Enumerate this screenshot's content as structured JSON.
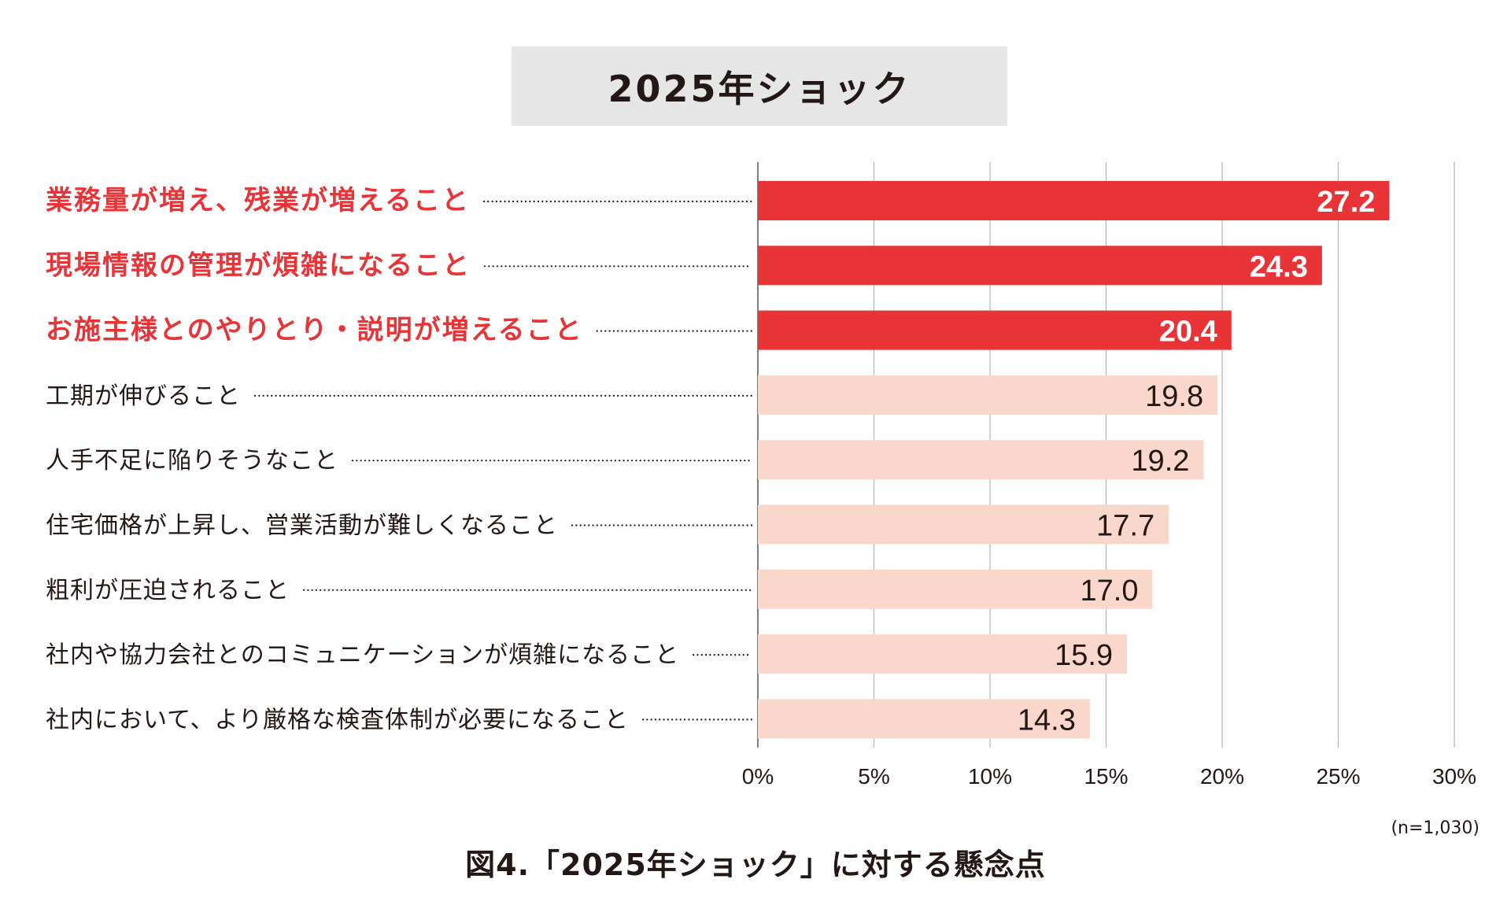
{
  "chart_data": {
    "type": "bar",
    "orientation": "horizontal",
    "title": "2025年ショック",
    "categories": [
      "業務量が増え、残業が増えること",
      "現場情報の管理が煩雑になること",
      "お施主様とのやりとり・説明が増えること",
      "工期が伸びること",
      "人手不足に陥りそうなこと",
      "住宅価格が上昇し、営業活動が難しくなること",
      "粗利が圧迫されること",
      "社内や協力会社とのコミュニケーションが煩雑になること",
      "社内において、より厳格な検査体制が必要になること"
    ],
    "values": [
      27.2,
      24.3,
      20.4,
      19.8,
      19.2,
      17.7,
      17.0,
      15.9,
      14.3
    ],
    "value_labels": [
      "27.2",
      "24.3",
      "20.4",
      "19.8",
      "19.2",
      "17.7",
      "17.0",
      "15.9",
      "14.3"
    ],
    "highlighted": [
      true,
      true,
      true,
      false,
      false,
      false,
      false,
      false,
      false
    ],
    "xlim": [
      0,
      30
    ],
    "xticks": [
      0,
      5,
      10,
      15,
      20,
      25,
      30
    ],
    "xtick_labels": [
      "0%",
      "5%",
      "10%",
      "15%",
      "20%",
      "25%",
      "30%"
    ],
    "grid": true,
    "note": "(n=1,030)",
    "caption": "図4.「2025年ショック」に対する懸念点"
  },
  "colors": {
    "highlight": "#e83437",
    "normal": "#f9d8cb",
    "highlight_text": "#e83437",
    "normal_text": "#231815",
    "grid": "#b5b5b5",
    "title_bg": "#e6e6e6"
  }
}
